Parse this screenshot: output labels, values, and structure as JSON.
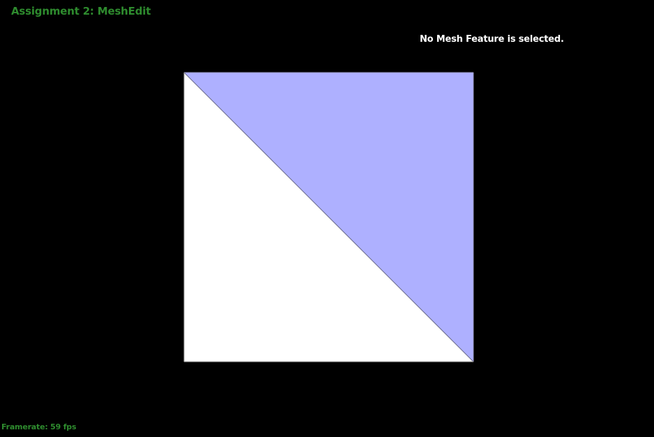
{
  "window": {
    "title": "Assignment 2: MeshEdit"
  },
  "status": {
    "selection_message": "No Mesh Feature is selected.",
    "framerate_text": "Framerate: 59 fps"
  },
  "colors": {
    "background": "#000000",
    "accent_text": "#2e8b2e",
    "status_text": "#ffffff",
    "face_white": "#ffffff",
    "face_blue": "#aeb0ff",
    "edge": "#6a6a8a"
  },
  "mesh": {
    "faces": [
      {
        "name": "lower-left-face",
        "fill": "white"
      },
      {
        "name": "upper-right-face",
        "fill": "blue"
      }
    ],
    "selected": null
  }
}
